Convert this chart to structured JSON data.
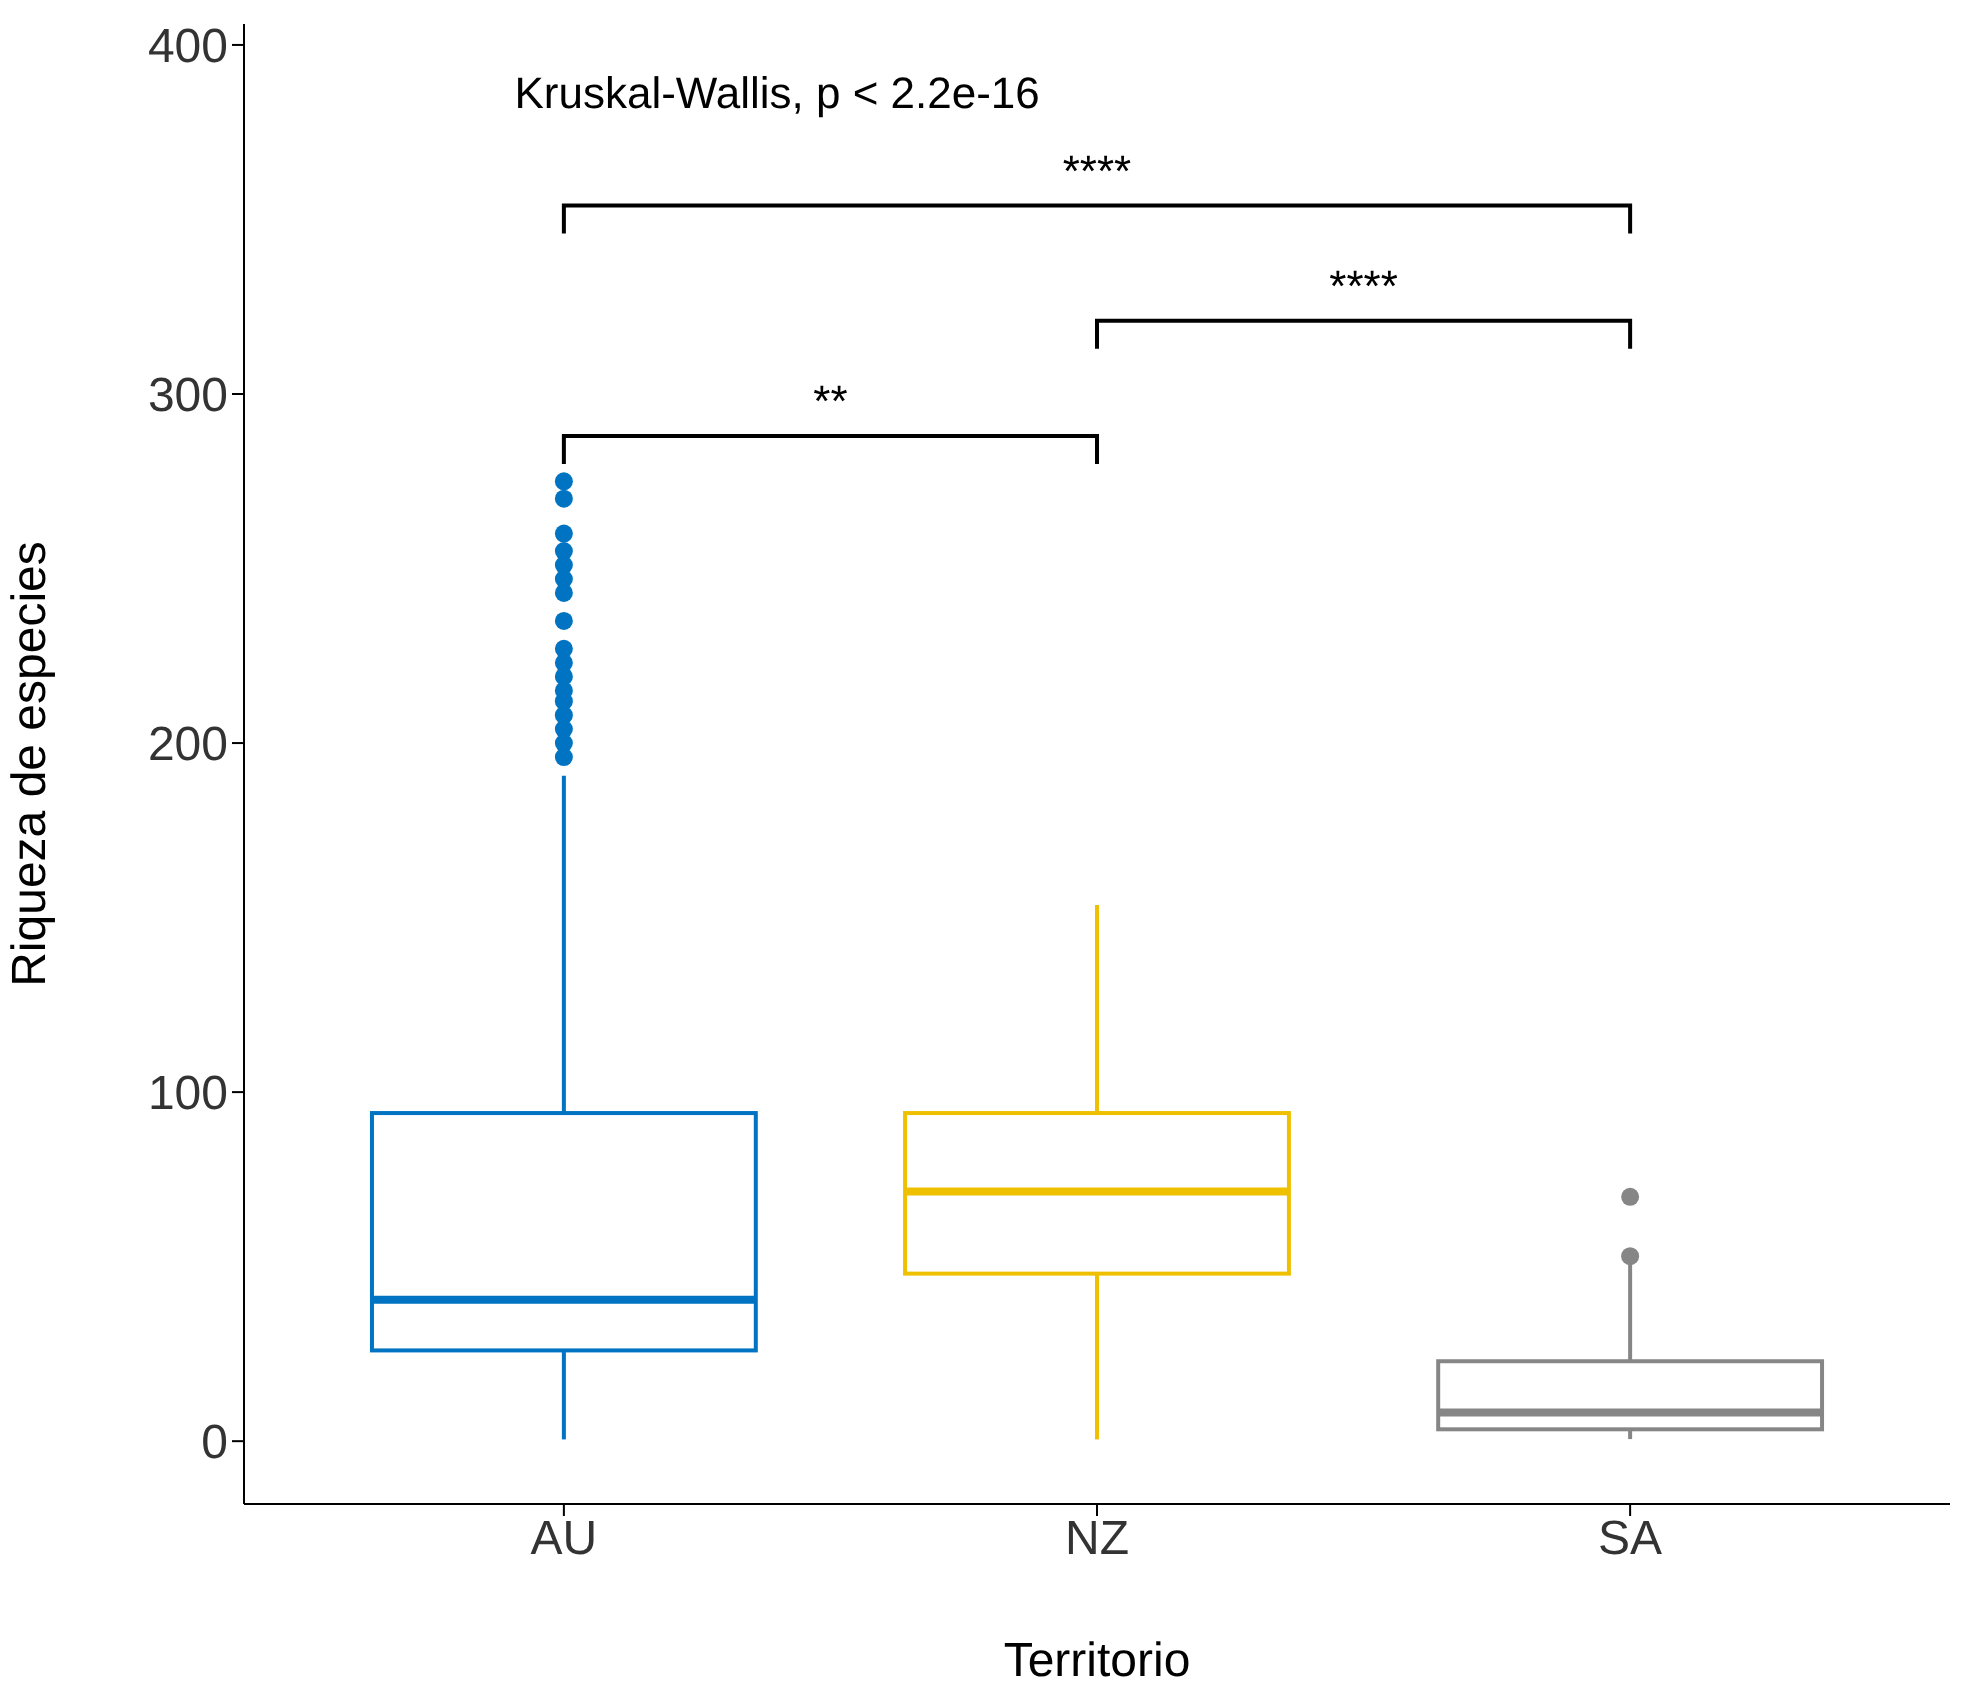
{
  "chart_data": {
    "type": "box",
    "categories": [
      "AU",
      "NZ",
      "SA"
    ],
    "colors": [
      "#0073c2",
      "#efc000",
      "#868686"
    ],
    "boxes": [
      {
        "low": 0.5,
        "q1": 26,
        "median": 40.5,
        "q3": 94,
        "high": 190.6,
        "outliers": [
          275,
          270,
          260,
          255,
          251,
          247,
          243,
          235,
          227,
          223,
          219,
          215,
          212,
          208,
          204,
          200,
          196
        ]
      },
      {
        "low": 0.5,
        "q1": 48,
        "median": 71.5,
        "q3": 94,
        "high": 153.6
      },
      {
        "low": 0.6,
        "q1": 3.4,
        "median": 8.2,
        "q3": 22.9,
        "high": 53,
        "outliers": [
          53,
          70
        ]
      }
    ],
    "xlabel": "Territorio",
    "ylabel": "Riqueza de especies",
    "ylim": [
      -18,
      406
    ],
    "yticks": [
      0,
      100,
      200,
      300,
      400
    ],
    "annotations": [
      "Kruskal-Wallis, p < 2.2e-16",
      "**",
      "****",
      "****"
    ]
  }
}
